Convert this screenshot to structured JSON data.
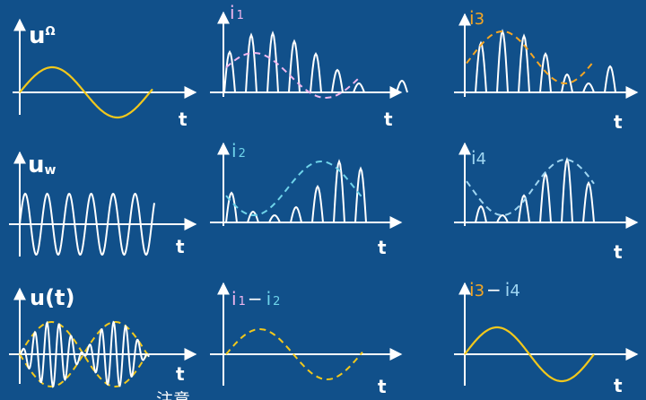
{
  "colors": {
    "background": "#11508a",
    "axis": "#ffffff",
    "wave_white": "#ffffff",
    "yellow": "#f2c81c",
    "pink": "#f0b6ee",
    "cyan": "#6fd4ea",
    "orange": "#f5a623",
    "light_blue": "#9fd6f2"
  },
  "panels": {
    "u_omega": {
      "label_main": "u",
      "label_sub": "Ω",
      "axis_label": "t"
    },
    "u_w": {
      "label_main": "u",
      "label_sub": "w",
      "axis_label": "t"
    },
    "u_t": {
      "label": "u(t)",
      "axis_label": "t"
    },
    "i1": {
      "label_main": "i",
      "label_sub": "1",
      "axis_label": "t"
    },
    "i2": {
      "label_main": "i",
      "label_sub": "2",
      "axis_label": "t"
    },
    "i1_minus_i2": {
      "a_main": "i",
      "a_sub": "1",
      "op": "−",
      "b_main": "i",
      "b_sub": "2",
      "axis_label": "t"
    },
    "i3": {
      "label_main": "i",
      "label_sub": "3",
      "axis_label": "t"
    },
    "i4": {
      "label_main": "i",
      "label_sub": "4",
      "axis_label": "t"
    },
    "i3_minus_i4": {
      "a_main": "i",
      "a_sub": "3",
      "op": "−",
      "b_main": "i",
      "b_sub": "4",
      "axis_label": "t"
    }
  },
  "footnote": "注意"
}
